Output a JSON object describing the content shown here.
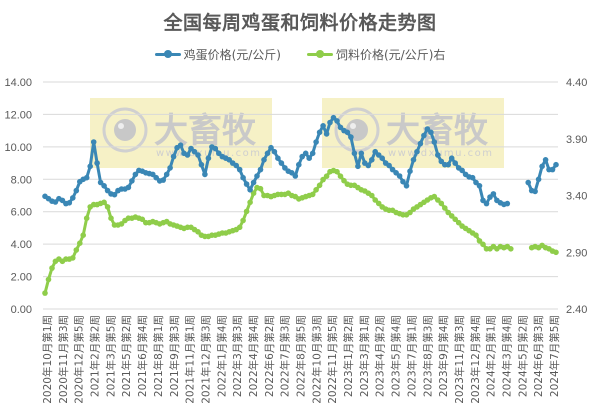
{
  "chart_data": {
    "type": "line",
    "title": "全国每周鸡蛋和饲料价格走势图",
    "xlabel": "",
    "ylabel": "",
    "ylim": [
      0,
      14
    ],
    "y2lim": [
      2.4,
      4.4
    ],
    "y_ticks": [
      "0.00",
      "2.00",
      "4.00",
      "6.00",
      "8.00",
      "10.00",
      "12.00",
      "14.00"
    ],
    "y2_ticks": [
      "2.40",
      "2.90",
      "3.40",
      "3.90",
      "4.40"
    ],
    "grid": true,
    "legend_position": "top",
    "watermark": {
      "text": "大畜牧",
      "subtext": "www.dxumu.com",
      "count": 2
    },
    "x_tick_labels": [
      "2020年10月第1周",
      "2020年11月第3周",
      "2020年12月第5周",
      "2021年2月第2周",
      "2021年3月第5周",
      "2021年5月第2周",
      "2021年6月第4周",
      "2021年8月第1周",
      "2021年9月第3周",
      "2021年11月第1周",
      "2021年12月第3周",
      "2022年1月第4周",
      "2022年3月第3周",
      "2022年4月第4周",
      "2022年6月第2周",
      "2022年7月第3周",
      "2022年8月第5周",
      "2022年10月第3周",
      "2022年11月第5周",
      "2023年1月第2周",
      "2023年3月第1周",
      "2023年4月第2周",
      "2023年5月第4周",
      "2023年7月第1周",
      "2023年8月第3周",
      "2023年9月第4周",
      "2023年11月第3周",
      "2023年12月第4周",
      "2024年2月第1周",
      "2024年3月第4周",
      "2024年5月第2周",
      "2024年6月第3周",
      "2024年7月第5周"
    ],
    "series": [
      {
        "name": "鸡蛋价格(元/公斤)",
        "axis": "left",
        "color": "#3a87b5",
        "values": [
          6.95,
          6.8,
          6.65,
          6.6,
          6.8,
          6.7,
          6.5,
          6.55,
          6.85,
          7.3,
          7.85,
          8.0,
          8.1,
          8.8,
          10.3,
          9.0,
          7.8,
          7.6,
          7.3,
          7.1,
          7.05,
          7.3,
          7.4,
          7.4,
          7.5,
          7.9,
          8.3,
          8.55,
          8.5,
          8.4,
          8.35,
          8.3,
          8.1,
          7.9,
          7.95,
          8.3,
          8.7,
          9.4,
          9.95,
          10.1,
          9.6,
          9.5,
          9.9,
          9.7,
          9.5,
          8.9,
          8.3,
          9.3,
          10.0,
          9.9,
          9.6,
          9.4,
          9.3,
          9.2,
          9.0,
          8.85,
          8.6,
          8.1,
          7.7,
          7.35,
          7.8,
          8.2,
          8.6,
          9.2,
          9.6,
          9.95,
          9.7,
          9.3,
          9.0,
          8.7,
          8.5,
          8.4,
          8.2,
          8.9,
          9.4,
          9.6,
          9.3,
          9.6,
          10.3,
          10.9,
          11.3,
          10.8,
          11.5,
          11.8,
          11.6,
          11.2,
          11.0,
          10.9,
          10.6,
          9.6,
          8.8,
          9.6,
          9.0,
          8.85,
          9.2,
          9.7,
          9.5,
          9.3,
          9.0,
          8.85,
          8.6,
          8.4,
          8.2,
          7.85,
          7.6,
          8.5,
          9.2,
          9.7,
          10.2,
          10.7,
          11.1,
          10.9,
          10.3,
          9.5,
          9.1,
          8.9,
          8.9,
          9.3,
          9.0,
          8.7,
          8.55,
          8.3,
          8.15,
          8.1,
          7.8,
          7.6,
          6.7,
          6.5,
          6.9,
          7.1,
          6.7,
          6.55,
          6.45,
          6.5,
          null,
          null,
          null,
          null,
          null,
          7.8,
          7.3,
          7.25,
          8.0,
          8.8,
          9.2,
          8.6,
          8.6,
          8.9
        ]
      },
      {
        "name": "饲料价格(元/公斤)右",
        "axis": "right",
        "color": "#8fcd4a",
        "values": [
          2.54,
          2.66,
          2.76,
          2.82,
          2.84,
          2.82,
          2.84,
          2.84,
          2.85,
          2.92,
          2.98,
          3.05,
          3.2,
          3.3,
          3.32,
          3.32,
          3.33,
          3.34,
          3.3,
          3.2,
          3.14,
          3.14,
          3.15,
          3.18,
          3.2,
          3.2,
          3.21,
          3.2,
          3.19,
          3.16,
          3.16,
          3.17,
          3.16,
          3.15,
          3.16,
          3.17,
          3.15,
          3.14,
          3.13,
          3.12,
          3.11,
          3.12,
          3.12,
          3.1,
          3.08,
          3.05,
          3.04,
          3.04,
          3.05,
          3.05,
          3.06,
          3.07,
          3.07,
          3.08,
          3.09,
          3.1,
          3.12,
          3.18,
          3.26,
          3.34,
          3.42,
          3.47,
          3.46,
          3.4,
          3.4,
          3.39,
          3.4,
          3.41,
          3.41,
          3.41,
          3.42,
          3.4,
          3.39,
          3.37,
          3.38,
          3.39,
          3.4,
          3.41,
          3.45,
          3.49,
          3.54,
          3.57,
          3.61,
          3.62,
          3.61,
          3.57,
          3.53,
          3.5,
          3.49,
          3.49,
          3.47,
          3.45,
          3.44,
          3.42,
          3.4,
          3.36,
          3.33,
          3.3,
          3.28,
          3.27,
          3.27,
          3.25,
          3.24,
          3.23,
          3.23,
          3.25,
          3.28,
          3.3,
          3.32,
          3.34,
          3.36,
          3.38,
          3.39,
          3.36,
          3.33,
          3.29,
          3.25,
          3.22,
          3.19,
          3.16,
          3.13,
          3.11,
          3.09,
          3.07,
          3.05,
          3.0,
          2.97,
          2.93,
          2.93,
          2.95,
          2.93,
          2.95,
          2.94,
          2.95,
          2.93,
          null,
          null,
          null,
          null,
          null,
          2.94,
          2.95,
          2.94,
          2.96,
          2.94,
          2.93,
          2.91,
          2.9
        ]
      }
    ]
  },
  "title": "全国每周鸡蛋和饲料价格走势图",
  "legend": [
    {
      "label": "鸡蛋价格(元/公斤)",
      "color": "#3a87b5"
    },
    {
      "label": "饲料价格(元/公斤)右",
      "color": "#8fcd4a"
    }
  ]
}
